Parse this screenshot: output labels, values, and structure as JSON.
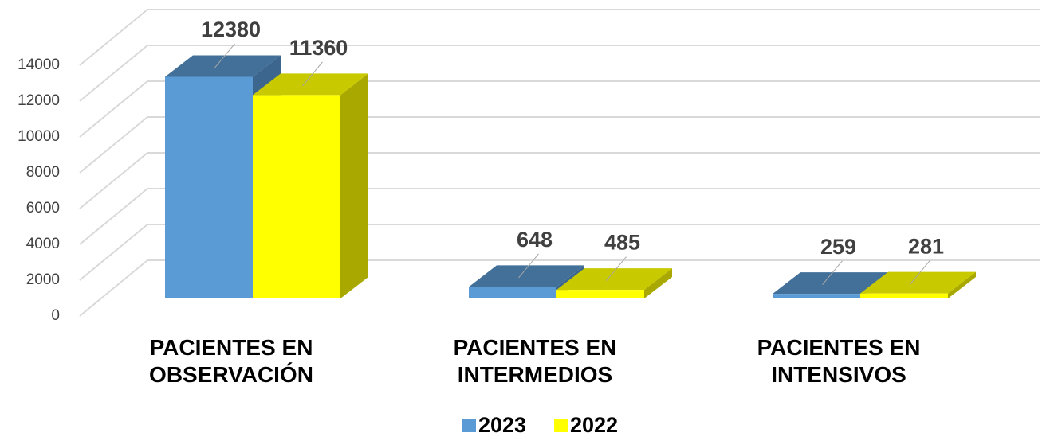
{
  "chart_data": {
    "type": "bar3d",
    "categories": [
      "PACIENTES EN\nOBSERVACIÓN",
      "PACIENTES EN\nINTERMEDIOS",
      "PACIENTES EN\nINTENSIVOS"
    ],
    "series": [
      {
        "name": "2023",
        "color": "#5b9bd5",
        "values": [
          12380,
          648,
          259
        ]
      },
      {
        "name": "2022",
        "color": "#ffff00",
        "values": [
          11360,
          485,
          281
        ]
      }
    ],
    "ylim": [
      0,
      14000
    ],
    "yticks": [
      0,
      2000,
      4000,
      6000,
      8000,
      10000,
      12000,
      14000
    ],
    "grid": true,
    "legend": "bottom"
  }
}
